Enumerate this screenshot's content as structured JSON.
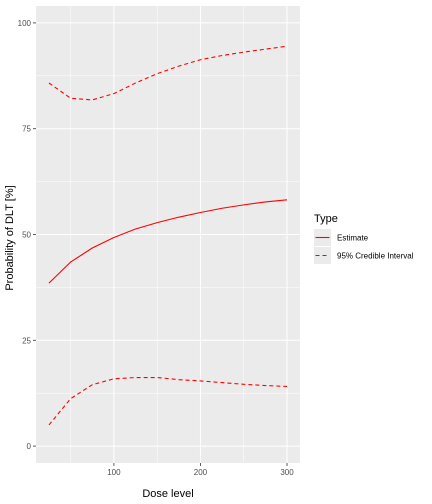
{
  "chart_data": {
    "type": "line",
    "xlabel": "Dose level",
    "ylabel": "Probability of DLT [%]",
    "xlim": [
      10,
      315
    ],
    "ylim": [
      -4,
      104
    ],
    "x_ticks": [
      100,
      200,
      300
    ],
    "y_ticks": [
      0,
      25,
      50,
      75,
      100
    ],
    "x_tick_labels": [
      "100",
      "200",
      "300"
    ],
    "y_tick_labels": [
      "0",
      "25",
      "50",
      "75",
      "100"
    ],
    "grid": true,
    "legend_position": "right",
    "legend_title": "Type",
    "series_color": "#ff0000",
    "panel_color": "#ebebeb",
    "x": [
      25,
      50,
      75,
      100,
      125,
      150,
      175,
      200,
      225,
      250,
      275,
      300
    ],
    "series": [
      {
        "name": "Estimate",
        "linestyle": "solid",
        "values": [
          38.5,
          43.5,
          46.8,
          49.3,
          51.3,
          52.8,
          54.1,
          55.2,
          56.2,
          57.0,
          57.7,
          58.2
        ]
      },
      {
        "name": "95% Credible Interval",
        "linestyle": "dashed",
        "values": [
          85.8,
          82.2,
          81.8,
          83.3,
          85.8,
          88.0,
          89.8,
          91.3,
          92.3,
          93.1,
          93.8,
          94.5
        ]
      },
      {
        "name": "",
        "linestyle": "dashed",
        "values": [
          5.0,
          11.2,
          14.5,
          15.9,
          16.2,
          16.2,
          15.7,
          15.4,
          15.0,
          14.6,
          14.3,
          14.1
        ]
      }
    ],
    "legend_entries": [
      {
        "label": "Estimate",
        "linestyle": "solid"
      },
      {
        "label": "95% Credible Interval",
        "linestyle": "dashed"
      }
    ]
  }
}
